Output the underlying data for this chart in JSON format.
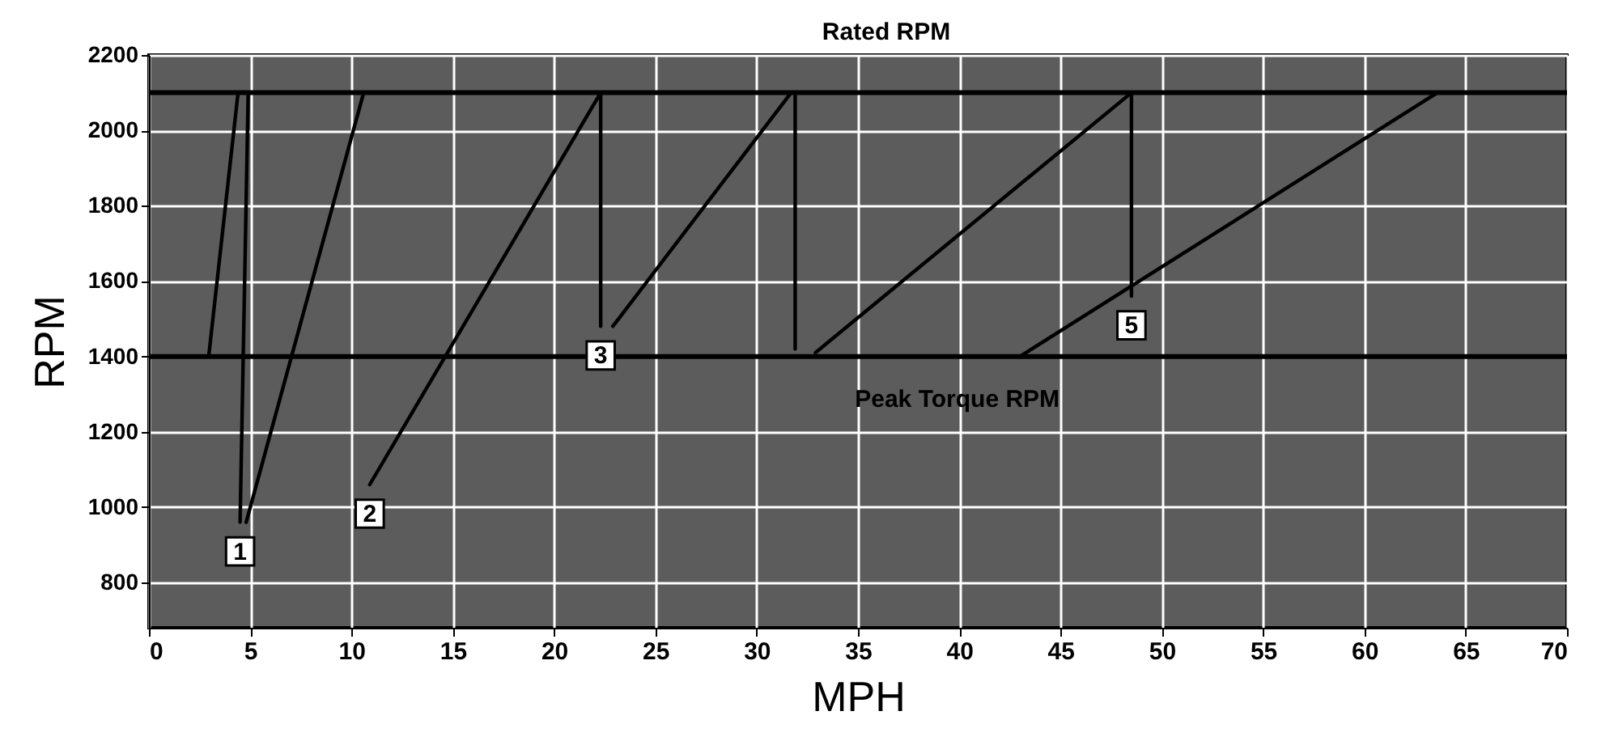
{
  "chart_data": {
    "type": "line",
    "xlabel": "MPH",
    "ylabel": "RPM",
    "xlim": [
      0,
      70
    ],
    "xticks": [
      0,
      5,
      10,
      15,
      20,
      25,
      30,
      35,
      40,
      45,
      50,
      55,
      60,
      65,
      70
    ],
    "ylim": [
      680,
      2200
    ],
    "yticks": [
      800,
      1000,
      1200,
      1400,
      1600,
      1800,
      2000,
      2200
    ],
    "grid": true,
    "marker": "none",
    "line_style": "solid",
    "series": [
      {
        "color": "#000000",
        "x": [
          2.95,
          4.4
        ],
        "values": [
          1400,
          2100
        ]
      },
      {
        "color": "#000000",
        "x": [
          4.5,
          4.9
        ],
        "values": [
          960,
          2100
        ]
      },
      {
        "color": "#000000",
        "x": [
          4.8,
          10.6
        ],
        "values": [
          960,
          2100
        ]
      },
      {
        "color": "#000000",
        "x": [
          10.9,
          22.3
        ],
        "values": [
          1060,
          2100
        ]
      },
      {
        "color": "#000000",
        "x": [
          22.3,
          22.3
        ],
        "values": [
          1480,
          2100
        ]
      },
      {
        "color": "#000000",
        "x": [
          22.9,
          31.7
        ],
        "values": [
          1480,
          2100
        ]
      },
      {
        "color": "#000000",
        "x": [
          31.9,
          31.9
        ],
        "values": [
          1420,
          2100
        ]
      },
      {
        "color": "#000000",
        "x": [
          32.9,
          48.5
        ],
        "values": [
          1410,
          2100
        ]
      },
      {
        "color": "#000000",
        "x": [
          48.5,
          48.5
        ],
        "values": [
          1560,
          2100
        ]
      },
      {
        "color": "#000000",
        "x": [
          43,
          63.6
        ],
        "values": [
          1400,
          2100
        ]
      }
    ],
    "ref_lines": [
      {
        "axis": "y",
        "value": 2100,
        "label": "Rated RPM",
        "color": "#000000"
      },
      {
        "axis": "y",
        "value": 1400,
        "label": "Peak Torque RPM",
        "color": "#000000"
      }
    ],
    "annotations": [
      {
        "text": "1",
        "x": 4.5,
        "y": 960
      },
      {
        "text": "2",
        "x": 10.9,
        "y": 1060
      },
      {
        "text": "3",
        "x": 22.3,
        "y": 1480
      },
      {
        "text": "5",
        "x": 48.5,
        "y": 1560
      }
    ]
  }
}
